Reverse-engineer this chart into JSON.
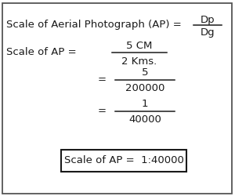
{
  "bg_color": "#ffffff",
  "text_color": "#1a1a1a",
  "border_color": "#555555",
  "result_border_color": "#1a1a1a",
  "fs": 9.5,
  "line1_left": "Scale of Aerial Photograph (AP) =",
  "line1_num": "Dp",
  "line1_den": "Dg",
  "line2_label": "Scale of AP =",
  "line2_num": "5 CM",
  "line2_den": "2 Kms.",
  "line3_eq": "=",
  "line3_num": "5",
  "line3_den": "200000",
  "line4_eq": "=",
  "line4_num": "1",
  "line4_den": "40000",
  "result_text": "Scale of AP =  1:40000"
}
